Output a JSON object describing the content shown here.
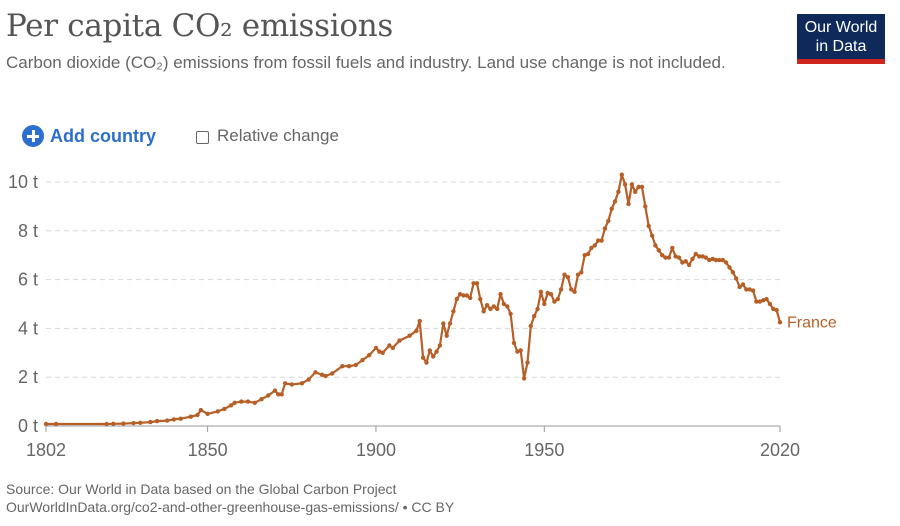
{
  "header": {
    "title": "Per capita CO₂ emissions",
    "subtitle": "Carbon dioxide (CO₂) emissions from fossil fuels and industry. Land use change is not included.",
    "logo_line1": "Our World",
    "logo_line2": "in Data"
  },
  "controls": {
    "add_country_label": "Add country",
    "relative_change_label": "Relative change",
    "relative_change_checked": false
  },
  "footer": {
    "source": "Source: Our World in Data based on the Global Carbon Project",
    "url_line": "OurWorldInData.org/co2-and-other-greenhouse-gas-emissions/ • CC BY"
  },
  "colors": {
    "series": "#b65f27",
    "logo_bg": "#0f2a5a",
    "logo_bar": "#ce261e",
    "accent": "#2c6fcf"
  },
  "chart_data": {
    "type": "line",
    "title": "Per capita CO₂ emissions",
    "xlabel": "",
    "ylabel": "",
    "xlim": [
      1802,
      2020
    ],
    "ylim": [
      0,
      10
    ],
    "x_ticks": [
      1802,
      1850,
      1900,
      1950,
      2020
    ],
    "y_ticks": [
      0,
      2,
      4,
      6,
      8,
      10
    ],
    "y_tick_labels": [
      "0 t",
      "2 t",
      "4 t",
      "6 t",
      "8 t",
      "10 t"
    ],
    "grid": "horizontal-dashed",
    "legend": "inline-end-label",
    "series": [
      {
        "name": "France",
        "x": [
          1802,
          1805,
          1820,
          1822,
          1825,
          1828,
          1830,
          1833,
          1835,
          1838,
          1840,
          1842,
          1845,
          1847,
          1848,
          1850,
          1853,
          1855,
          1857,
          1858,
          1860,
          1862,
          1864,
          1866,
          1868,
          1870,
          1871,
          1872,
          1873,
          1875,
          1878,
          1880,
          1882,
          1884,
          1885,
          1887,
          1890,
          1892,
          1894,
          1896,
          1898,
          1900,
          1901,
          1902,
          1904,
          1905,
          1907,
          1910,
          1912,
          1913,
          1914,
          1915,
          1916,
          1917,
          1918,
          1919,
          1920,
          1921,
          1922,
          1923,
          1924,
          1925,
          1926,
          1927,
          1928,
          1929,
          1930,
          1931,
          1932,
          1933,
          1934,
          1935,
          1936,
          1937,
          1938,
          1939,
          1940,
          1941,
          1942,
          1943,
          1944,
          1945,
          1946,
          1947,
          1948,
          1949,
          1950,
          1951,
          1952,
          1953,
          1954,
          1955,
          1956,
          1957,
          1958,
          1959,
          1960,
          1961,
          1962,
          1963,
          1964,
          1965,
          1966,
          1967,
          1968,
          1969,
          1970,
          1971,
          1972,
          1973,
          1974,
          1975,
          1976,
          1977,
          1978,
          1979,
          1980,
          1981,
          1982,
          1983,
          1984,
          1985,
          1986,
          1987,
          1988,
          1989,
          1990,
          1991,
          1992,
          1993,
          1994,
          1995,
          1996,
          1997,
          1998,
          1999,
          2000,
          2001,
          2002,
          2003,
          2004,
          2005,
          2006,
          2007,
          2008,
          2009,
          2010,
          2011,
          2012,
          2013,
          2014,
          2015,
          2016,
          2017,
          2018,
          2019,
          2020
        ],
        "values": [
          0.08,
          0.08,
          0.08,
          0.09,
          0.1,
          0.12,
          0.13,
          0.16,
          0.2,
          0.22,
          0.27,
          0.3,
          0.38,
          0.45,
          0.65,
          0.5,
          0.6,
          0.7,
          0.85,
          0.95,
          1.0,
          1.0,
          0.95,
          1.1,
          1.25,
          1.45,
          1.3,
          1.3,
          1.75,
          1.7,
          1.75,
          1.9,
          2.2,
          2.1,
          2.05,
          2.15,
          2.45,
          2.45,
          2.5,
          2.7,
          2.9,
          3.2,
          3.05,
          3.0,
          3.3,
          3.2,
          3.5,
          3.7,
          3.9,
          4.3,
          2.8,
          2.6,
          3.1,
          2.85,
          3.05,
          3.3,
          4.2,
          3.7,
          4.2,
          4.7,
          5.2,
          5.4,
          5.35,
          5.35,
          5.25,
          5.85,
          5.85,
          5.2,
          4.7,
          4.95,
          4.8,
          4.9,
          4.8,
          5.4,
          5.0,
          4.9,
          4.6,
          3.4,
          3.05,
          3.1,
          1.95,
          2.6,
          4.1,
          4.5,
          4.8,
          5.5,
          5.0,
          5.45,
          5.4,
          5.1,
          5.2,
          5.6,
          6.2,
          6.1,
          5.6,
          5.5,
          6.2,
          6.3,
          7.0,
          7.05,
          7.3,
          7.4,
          7.6,
          7.6,
          8.1,
          8.4,
          8.9,
          9.2,
          9.6,
          10.3,
          9.9,
          9.1,
          9.9,
          9.6,
          9.8,
          9.8,
          9.0,
          8.2,
          7.8,
          7.4,
          7.2,
          7.0,
          6.9,
          6.9,
          7.3,
          6.95,
          6.9,
          6.7,
          6.75,
          6.6,
          6.85,
          7.05,
          6.95,
          6.95,
          6.9,
          6.8,
          6.85,
          6.8,
          6.8,
          6.8,
          6.7,
          6.5,
          6.3,
          6.05,
          5.7,
          5.8,
          5.6,
          5.6,
          5.55,
          5.1,
          5.1,
          5.15,
          5.2,
          5.0,
          4.8,
          4.75,
          4.25
        ]
      }
    ]
  }
}
